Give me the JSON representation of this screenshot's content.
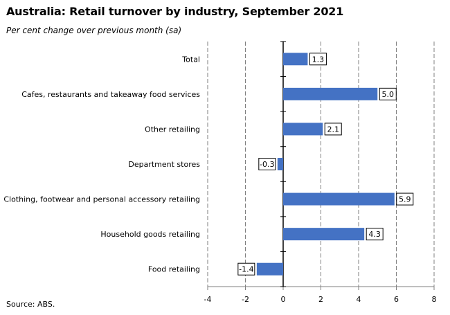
{
  "header": {
    "title": "Australia: Retail turnover by industry, September 2021",
    "subtitle": "Per cent change over previous month (sa)"
  },
  "footer": {
    "source": "Source: ABS."
  },
  "chart_data": {
    "type": "bar",
    "orientation": "horizontal",
    "title": "Australia: Retail turnover by industry, September 2021",
    "subtitle": "Per cent change over previous month (sa)",
    "categories": [
      "Total",
      "Cafes, restaurants and takeaway food services",
      "Other retailing",
      "Department stores",
      "Clothing, footwear and personal accessory retailing",
      "Household goods retailing",
      "Food retailing"
    ],
    "values": [
      1.3,
      5.0,
      2.1,
      -0.3,
      5.9,
      4.3,
      -1.4
    ],
    "data_labels": [
      "1.3",
      "5.0",
      "2.1",
      "-0.3",
      "5.9",
      "4.3",
      "-1.4"
    ],
    "xlim": [
      -4,
      8
    ],
    "xticks": [
      -4,
      -2,
      0,
      2,
      4,
      6,
      8
    ],
    "grid": true,
    "legend": "none",
    "bar_color": "#4472C4"
  }
}
